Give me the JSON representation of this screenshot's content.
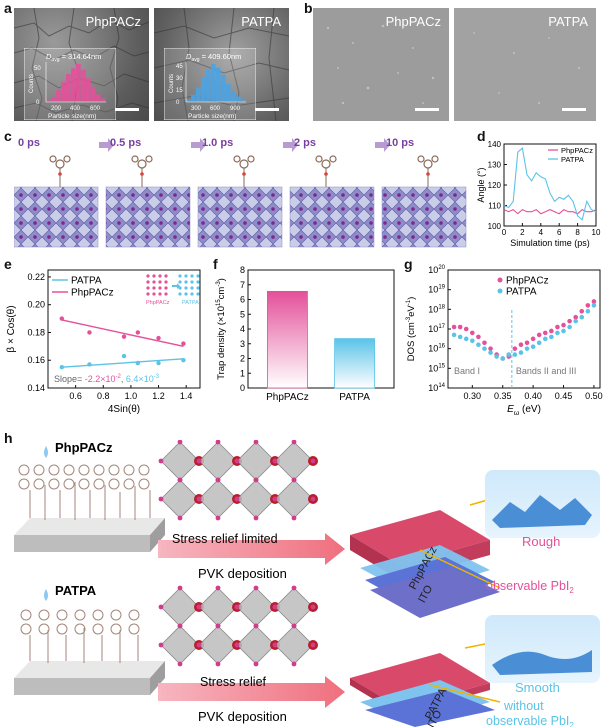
{
  "panel_labels": {
    "a": "a",
    "b": "b",
    "c": "c",
    "d": "d",
    "e": "e",
    "f": "f",
    "g": "g",
    "h": "h"
  },
  "panel_a": {
    "left_tag": "PhpPACz",
    "right_tag": "PATPA",
    "left_inset": {
      "davg": "D",
      "davg_sub": "avg",
      "value": " = 314.64nm",
      "ylabel": "Counts",
      "xlabel": "Particle size(nm)",
      "xticks": [
        "200",
        "400",
        "600"
      ],
      "yticks": [
        "0",
        "50"
      ],
      "bars": [
        2,
        6,
        14,
        24,
        33,
        40,
        45,
        38,
        28,
        18,
        9,
        4
      ],
      "color": "#e4509a"
    },
    "right_inset": {
      "davg": "D",
      "davg_sub": "avg",
      "value": " = 409.60nm",
      "ylabel": "Counts",
      "xlabel": "Particle size(nm)",
      "xticks": [
        "300",
        "600",
        "900"
      ],
      "yticks": [
        "0",
        "15",
        "30",
        "45"
      ],
      "bars": [
        3,
        8,
        16,
        27,
        36,
        42,
        38,
        30,
        20,
        12,
        6,
        2
      ],
      "color": "#4aa3e6"
    }
  },
  "panel_b": {
    "left_tag": "PhpPACz",
    "right_tag": "PATPA"
  },
  "panel_c": {
    "times": [
      "0 ps",
      "0.5 ps",
      "1.0 ps",
      "2 ps",
      "10 ps"
    ],
    "color": "#7a3fa0"
  },
  "panel_d": {
    "chart_data": {
      "type": "line",
      "xlabel": "Simulation time (ps)",
      "ylabel": "Angle (°)",
      "xlim": [
        0,
        10
      ],
      "ylim": [
        100,
        140
      ],
      "xticks": [
        "0",
        "2",
        "4",
        "6",
        "8",
        "10"
      ],
      "yticks": [
        "100",
        "110",
        "120",
        "130",
        "140"
      ],
      "legend_position": "top-right",
      "series": [
        {
          "name": "PhpPACz",
          "color": "#e4509a",
          "x": [
            0,
            0.5,
            1,
            1.5,
            2,
            2.5,
            3,
            3.5,
            4,
            4.5,
            5,
            5.5,
            6,
            6.5,
            7,
            7.5,
            8,
            8.5,
            9,
            9.5,
            10
          ],
          "y": [
            108,
            107,
            108,
            106,
            108,
            107,
            107,
            108,
            106,
            107,
            108,
            107,
            106,
            108,
            107,
            107,
            106,
            108,
            107,
            107,
            108
          ]
        },
        {
          "name": "PATPA",
          "color": "#5bc3e8",
          "x": [
            0,
            0.5,
            1,
            1.5,
            2,
            2.5,
            3,
            3.5,
            4,
            4.5,
            5,
            5.5,
            6,
            6.5,
            7,
            7.5,
            8,
            8.5,
            9,
            9.5,
            10
          ],
          "y": [
            110,
            109,
            112,
            136,
            138,
            125,
            122,
            126,
            124,
            123,
            116,
            112,
            114,
            113,
            115,
            112,
            105,
            103,
            112,
            108,
            107
          ]
        }
      ]
    }
  },
  "panel_e": {
    "chart_data": {
      "type": "scatter",
      "xlabel": "4Sin(θ)",
      "ylabel": "β × Cos(θ)",
      "xlim": [
        0.4,
        1.5
      ],
      "ylim": [
        0.14,
        0.225
      ],
      "xticks": [
        "0.6",
        "0.8",
        "1.0",
        "1.2",
        "1.4"
      ],
      "yticks": [
        "0.14",
        "0.16",
        "0.18",
        "0.20",
        "0.22"
      ],
      "legend_position": "top-left",
      "series": [
        {
          "name": "PATPA",
          "color": "#5bc3e8",
          "x": [
            0.5,
            0.7,
            0.95,
            1.05,
            1.2,
            1.38
          ],
          "y": [
            0.155,
            0.157,
            0.163,
            0.158,
            0.158,
            0.16
          ],
          "fit": [
            [
              0.5,
              0.155
            ],
            [
              1.38,
              0.161
            ]
          ]
        },
        {
          "name": "PhpPACz",
          "color": "#e4509a",
          "x": [
            0.5,
            0.7,
            0.95,
            1.05,
            1.2,
            1.38
          ],
          "y": [
            0.19,
            0.18,
            0.177,
            0.18,
            0.176,
            0.172
          ],
          "fit": [
            [
              0.5,
              0.189
            ],
            [
              1.38,
              0.17
            ]
          ]
        }
      ],
      "slope_label": "Slope= ",
      "slope_pink": "-2.2×10",
      "slope_pink_exp": "-2",
      "slope_sep": ", ",
      "slope_blue": "6.4×10",
      "slope_blue_exp": "-3",
      "inset_left": "PhpPACz",
      "inset_right": "PATPA"
    }
  },
  "panel_f": {
    "chart_data": {
      "type": "bar",
      "categories": [
        "PhpPACz",
        "PATPA"
      ],
      "values": [
        6.55,
        3.35
      ],
      "colors": [
        "#e4509a",
        "#5bc3e8"
      ],
      "ylabel": "Trap density (×10",
      "ylabel_exp": "15",
      "ylabel_unit": "cm",
      "ylabel_unit_exp": "-3",
      "ylabel_close": ")",
      "ylim": [
        0,
        8
      ],
      "yticks": [
        "0",
        "1",
        "2",
        "3",
        "4",
        "5",
        "6",
        "7",
        "8"
      ]
    }
  },
  "panel_g": {
    "chart_data": {
      "type": "scatter",
      "xlabel": "E",
      "xlabel_sub": "ω",
      "xlabel_unit": " (eV)",
      "ylabel": "DOS (cm",
      "ylabel_exp": "-3",
      "ylabel_mid": "eV",
      "ylabel_exp2": "-1",
      "ylabel_close": ")",
      "xlim": [
        0.26,
        0.51
      ],
      "ylog": true,
      "ylim_exp": [
        14,
        20
      ],
      "xticks": [
        "0.30",
        "0.35",
        "0.40",
        "0.45",
        "0.50"
      ],
      "ytick_exps": [
        "14",
        "15",
        "16",
        "17",
        "18",
        "19",
        "20"
      ],
      "divider_x": 0.365,
      "region_left": "Band I",
      "region_right": "Bands II and III",
      "legend_position": "top-right",
      "series": [
        {
          "name": "PhpPACz",
          "color": "#e4509a",
          "x": [
            0.27,
            0.28,
            0.29,
            0.3,
            0.31,
            0.32,
            0.33,
            0.34,
            0.35,
            0.36,
            0.37,
            0.38,
            0.39,
            0.4,
            0.41,
            0.42,
            0.43,
            0.44,
            0.45,
            0.46,
            0.47,
            0.48,
            0.49,
            0.5
          ],
          "y_exp": [
            17.1,
            17.1,
            17.0,
            16.8,
            16.6,
            16.3,
            16.0,
            15.7,
            15.5,
            15.6,
            16.0,
            16.2,
            16.3,
            16.5,
            16.7,
            16.8,
            16.9,
            17.1,
            17.2,
            17.4,
            17.6,
            17.9,
            18.2,
            18.4
          ]
        },
        {
          "name": "PATPA",
          "color": "#5bc3e8",
          "x": [
            0.27,
            0.28,
            0.29,
            0.3,
            0.31,
            0.32,
            0.33,
            0.34,
            0.35,
            0.36,
            0.37,
            0.38,
            0.39,
            0.4,
            0.41,
            0.42,
            0.43,
            0.44,
            0.45,
            0.46,
            0.47,
            0.48,
            0.49,
            0.5
          ],
          "y_exp": [
            16.7,
            16.6,
            16.5,
            16.4,
            16.2,
            16.0,
            15.8,
            15.6,
            15.5,
            15.7,
            15.7,
            15.8,
            16.0,
            16.1,
            16.3,
            16.5,
            16.6,
            16.8,
            16.9,
            17.1,
            17.4,
            17.6,
            17.9,
            18.2
          ]
        }
      ]
    }
  },
  "panel_h": {
    "top_label": "PhpPACz",
    "bottom_label": "PATPA",
    "top_arrow": "Stress relief limited",
    "bottom_arrow": "Stress relief",
    "deposition": "PVK deposition",
    "stack_top_layer": "PhpPACz",
    "stack_bottom_layer": "PATPA",
    "ito": "ITO",
    "rough": "Rough",
    "smooth": "Smooth",
    "top_pbi": "observable PbI",
    "top_pbi_sub": "2",
    "bottom_pbi_line1": "without",
    "bottom_pbi_line2": "observable PbI",
    "bottom_pbi_sub": "2",
    "pink": "#e4509a",
    "blue": "#5bc3e8"
  }
}
